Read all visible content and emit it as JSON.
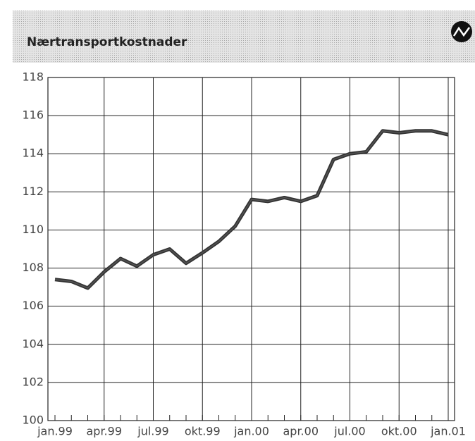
{
  "chart_data": {
    "type": "line",
    "title": "Nærtransportkostnader",
    "categories": [
      "jan.99",
      null,
      null,
      "apr.99",
      null,
      null,
      "jul.99",
      null,
      null,
      "okt.99",
      null,
      null,
      "jan.00",
      null,
      null,
      "apr.00",
      null,
      null,
      "jul.00",
      null,
      null,
      "okt.00",
      null,
      null,
      "jan.01"
    ],
    "series": [
      {
        "color": "#555555",
        "values": [
          107.4,
          107.3,
          106.95,
          107.8,
          108.5,
          108.1,
          108.7,
          109.0,
          108.25,
          108.8,
          109.4,
          110.2,
          111.6,
          111.5,
          111.7,
          111.5,
          111.8,
          113.7,
          114.0,
          114.1,
          115.2,
          115.1,
          115.2,
          115.2,
          115.0
        ]
      }
    ],
    "ylim": [
      100,
      118
    ],
    "yticks": [
      100,
      102,
      104,
      106,
      108,
      110,
      112,
      114,
      116,
      118
    ],
    "grid": true
  }
}
